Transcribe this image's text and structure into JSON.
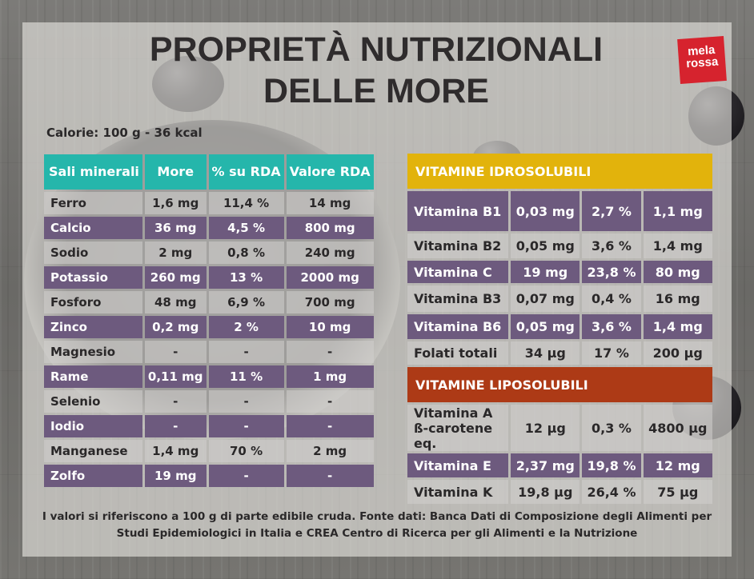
{
  "title": {
    "line1": "PROPRIETÀ NUTRIZIONALI",
    "line2": "DELLE MORE"
  },
  "logo": {
    "line1": "mela",
    "line2": "rossa"
  },
  "calories": "Calorie: 100 g - 36 kcal",
  "minerals": {
    "headers": [
      "Sali minerali",
      "More",
      "% su RDA",
      "Valore RDA"
    ],
    "rows": [
      [
        "Ferro",
        "1,6 mg",
        "11,4 %",
        "14 mg"
      ],
      [
        "Calcio",
        "36 mg",
        "4,5 %",
        "800 mg"
      ],
      [
        "Sodio",
        "2 mg",
        "0,8 %",
        "240 mg"
      ],
      [
        "Potassio",
        "260 mg",
        "13 %",
        "2000 mg"
      ],
      [
        "Fosforo",
        "48 mg",
        "6,9 %",
        "700 mg"
      ],
      [
        "Zinco",
        "0,2 mg",
        "2 %",
        "10 mg"
      ],
      [
        "Magnesio",
        "-",
        "-",
        "-"
      ],
      [
        "Rame",
        "0,11 mg",
        "11 %",
        "1 mg"
      ],
      [
        "Selenio",
        "-",
        "-",
        "-"
      ],
      [
        "Iodio",
        "-",
        "-",
        "-"
      ],
      [
        "Manganese",
        "1,4 mg",
        "70 %",
        "2 mg"
      ],
      [
        "Zolfo",
        "19 mg",
        "-",
        "-"
      ]
    ]
  },
  "vitamins_water": {
    "header": "VITAMINE IDROSOLUBILI",
    "rows": [
      [
        "Vitamina B1",
        "0,03 mg",
        "2,7 %",
        "1,1 mg"
      ],
      [
        "Vitamina B2",
        "0,05 mg",
        "3,6 %",
        "1,4 mg"
      ],
      [
        "Vitamina C",
        "19 mg",
        "23,8 %",
        "80 mg"
      ],
      [
        "Vitamina B3",
        "0,07 mg",
        "0,4 %",
        "16 mg"
      ],
      [
        "Vitamina B6",
        "0,05 mg",
        "3,6 %",
        "1,4 mg"
      ],
      [
        "Folati totali",
        "34 µg",
        "17 %",
        "200 µg"
      ]
    ]
  },
  "vitamins_fat": {
    "header": "VITAMINE LIPOSOLUBILI",
    "rows": [
      [
        "Vitamina A ß-carotene eq.",
        "12 µg",
        "0,3 %",
        "4800 µg"
      ],
      [
        "Vitamina E",
        "2,37 mg",
        "19,8 %",
        "12 mg"
      ],
      [
        "Vitamina K",
        "19,8 µg",
        "26,4 %",
        "75 µg"
      ]
    ]
  },
  "footnote": {
    "line1": "I valori si riferiscono a 100 g di parte edibile cruda. Fonte dati: Banca Dati di Composizione degli Alimenti per",
    "line2": "Studi Epidemiologici in Italia e CREA Centro di Ricerca per gli Alimenti e la Nutrizione"
  },
  "colors": {
    "minerals_header": "#25b6ab",
    "row_purple": "#6d5a7e",
    "water_header": "#e2b30c",
    "fat_header": "#ad3a16",
    "logo": "#d6232e"
  }
}
